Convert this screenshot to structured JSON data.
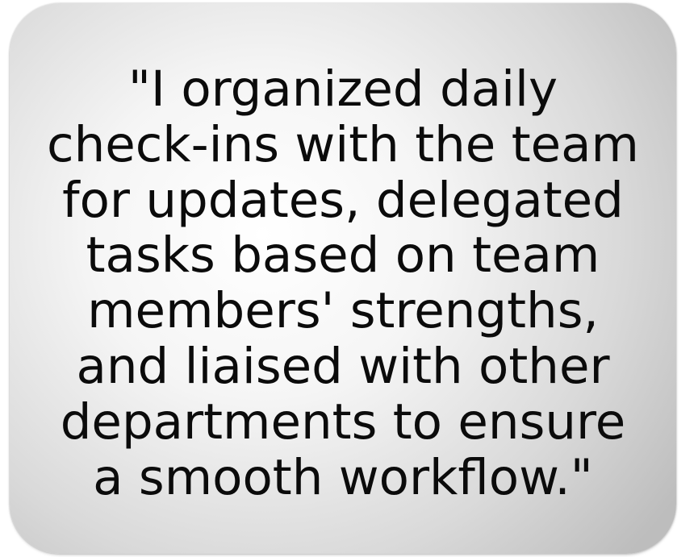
{
  "quote": {
    "lines": [
      "\"I organized daily",
      "check-ins with the team",
      "for updates, delegated",
      "tasks based on team",
      "members' strengths,",
      "and liaised with other",
      "departments to ensure",
      "a smooth workflow.\""
    ]
  }
}
